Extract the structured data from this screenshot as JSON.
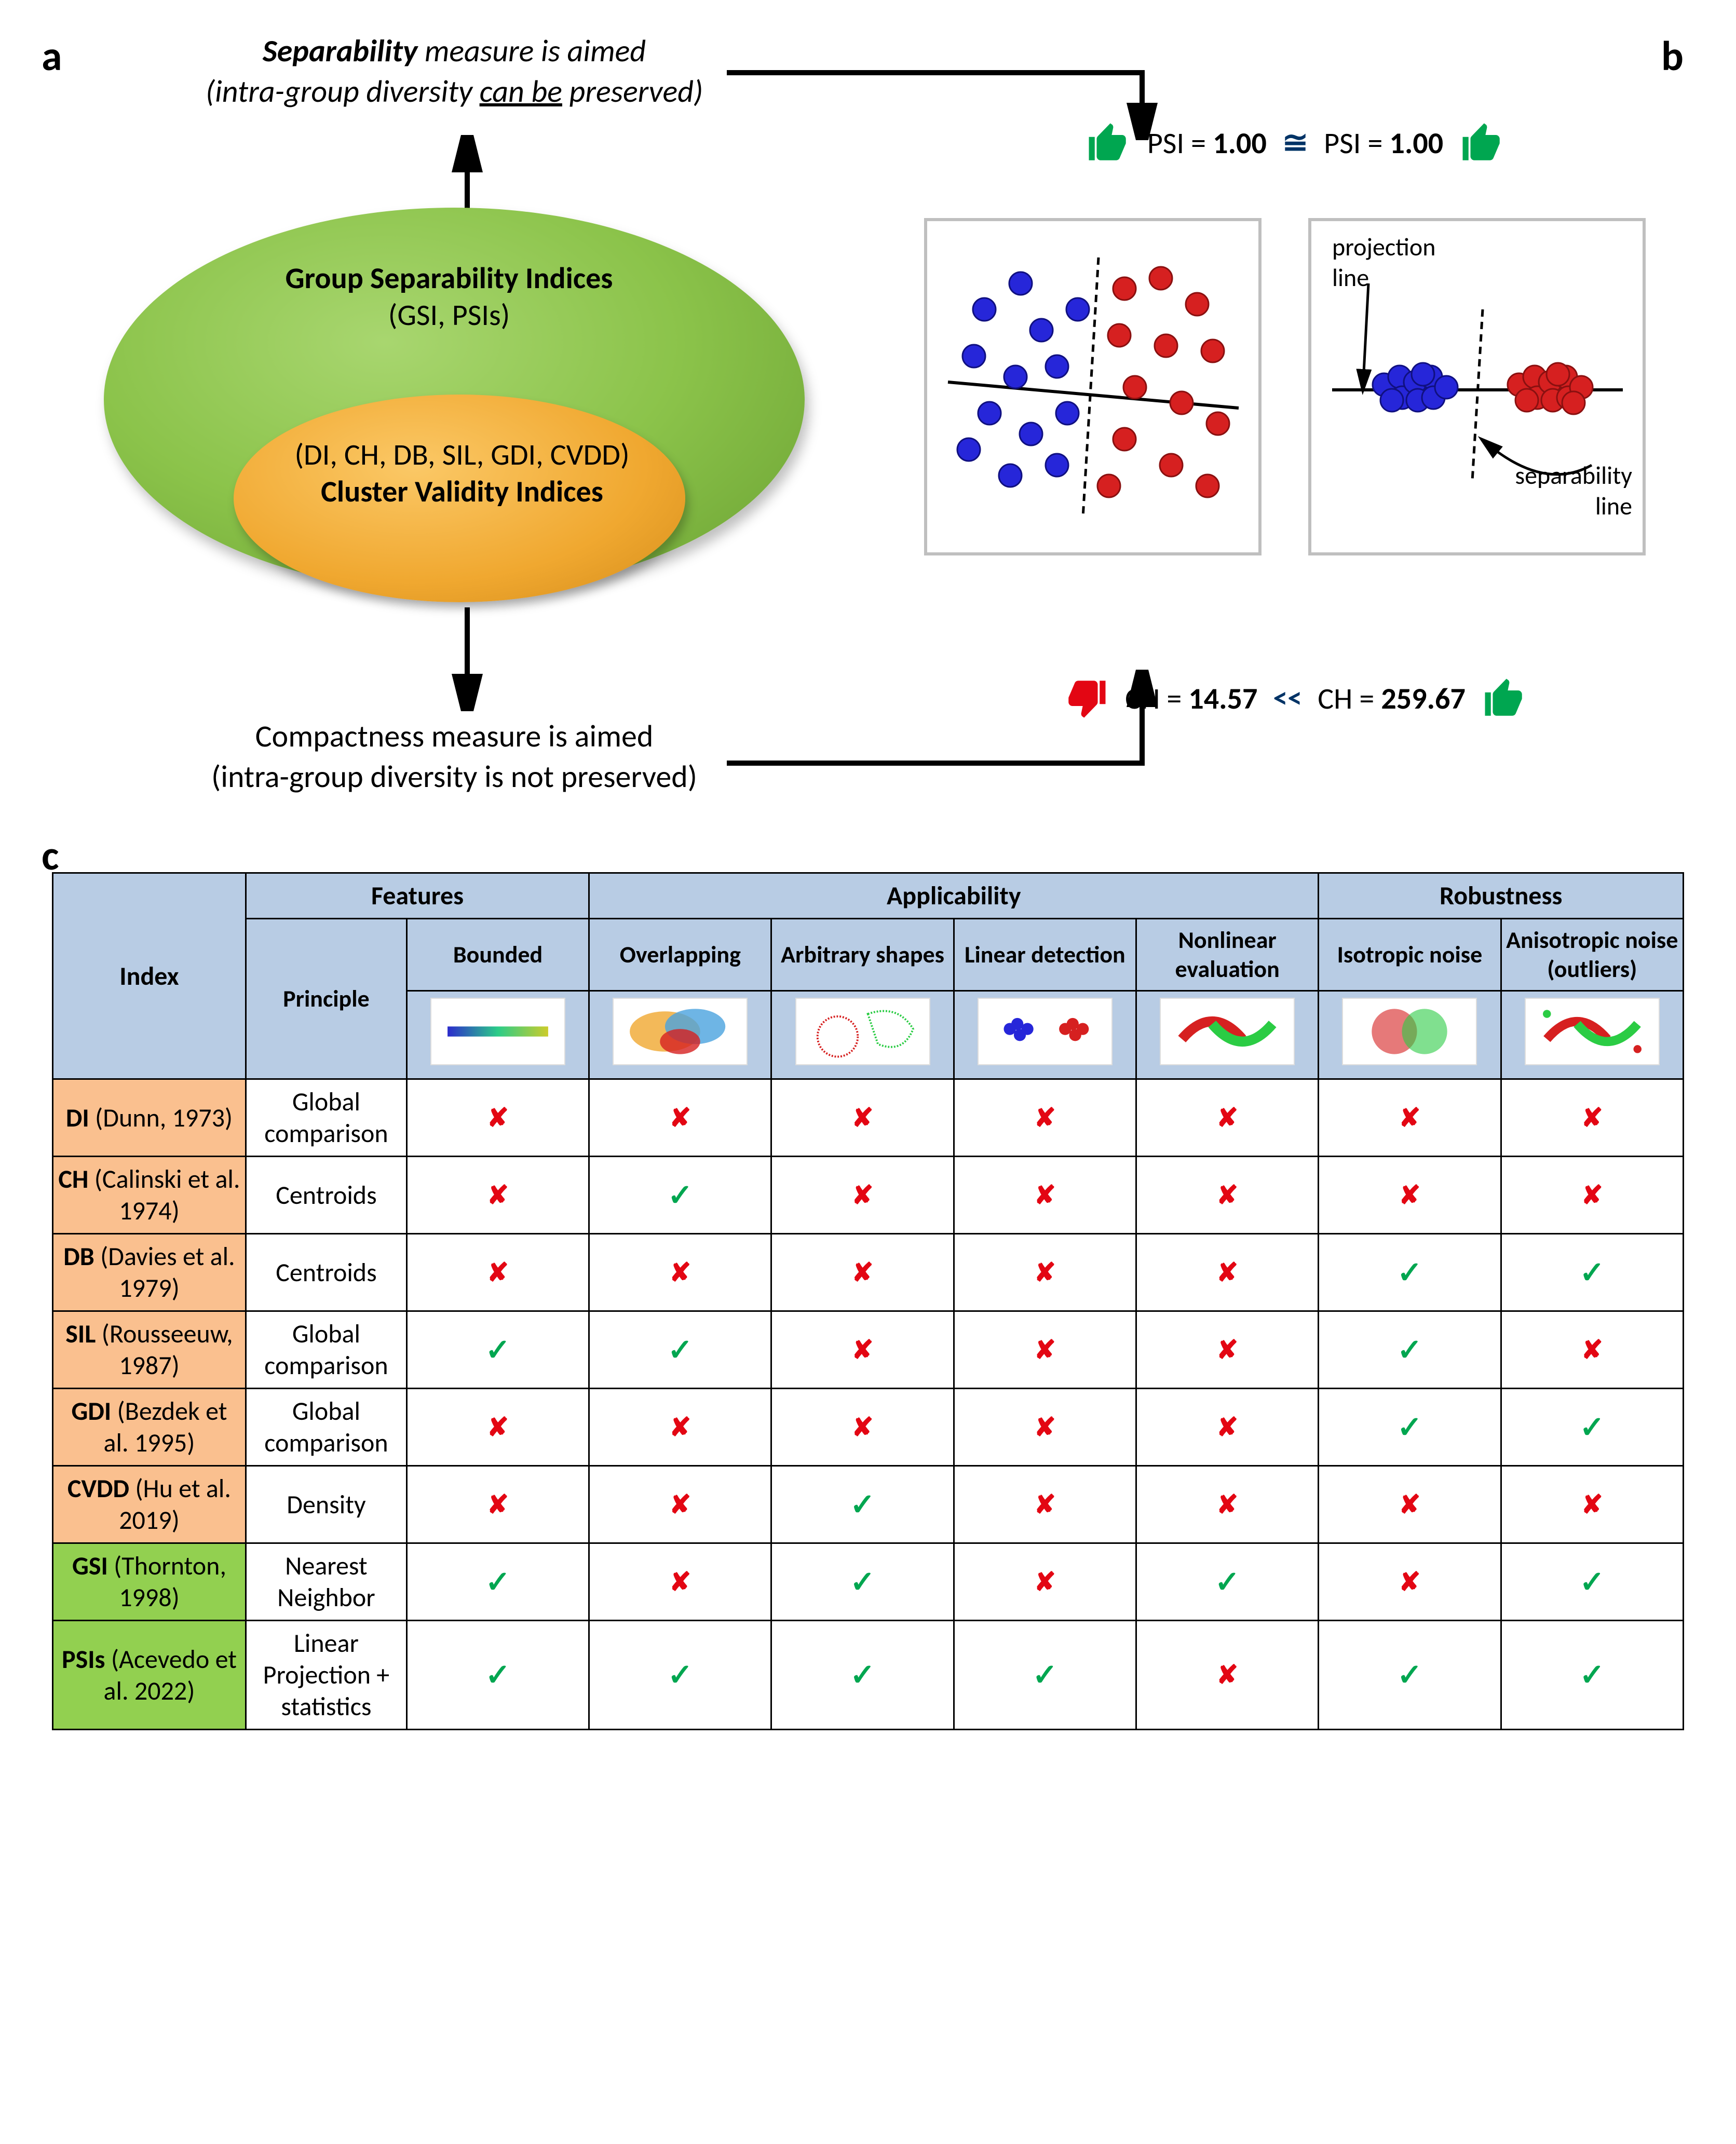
{
  "labels": {
    "a": "a",
    "b": "b",
    "c": "c"
  },
  "panelA": {
    "sep_line1_pre": "Separability",
    "sep_line1_post": " measure is aimed",
    "sep_line2_pre": "(intra-group diversity ",
    "sep_line2_mid": "can be",
    "sep_line2_post": " preserved)",
    "outer_title": "Group Separability Indices",
    "outer_sub": "(GSI, PSIs)",
    "inner_title": "Cluster Validity Indices",
    "inner_sub": "(DI, CH, DB, SIL, GDI, CVDD)",
    "comp_line1_pre": "Compactness",
    "comp_line1_post": " measure is aimed",
    "comp_line2_pre": "(intra-group diversity ",
    "comp_line2_mid": "is not",
    "comp_line2_post": " preserved)"
  },
  "panelB": {
    "psi_label": "PSI = ",
    "psi_left": "1.00",
    "psi_right": "1.00",
    "approx": "≅",
    "ch_label": "CH = ",
    "ch_left": "14.57",
    "ch_right": "259.67",
    "much_less": "<<",
    "proj_label": "projection line",
    "sep_label": "separability line",
    "colors": {
      "blue": "#2626d9",
      "red": "#d62020",
      "thumb_green": "#00a650",
      "thumb_red": "#e30613",
      "box_border": "#bfbfbf"
    }
  },
  "panelC": {
    "headers": {
      "index": "Index",
      "features": "Features",
      "applicability": "Applicability",
      "robustness": "Robustness",
      "principle": "Principle",
      "bounded": "Bounded",
      "overlapping": "Overlapping",
      "arbitrary": "Arbitrary shapes",
      "linear": "Linear detection",
      "nonlinear": "Nonlinear evaluation",
      "isotropic": "Isotropic noise",
      "anisotropic": "Anisotropic noise (outliers)"
    },
    "rows": [
      {
        "group": "orange",
        "name": "DI",
        "cite": " (Dunn, 1973)",
        "principle": "Global comparison",
        "vals": [
          "x",
          "x",
          "x",
          "x",
          "x",
          "x",
          "x"
        ]
      },
      {
        "group": "orange",
        "name": "CH",
        "cite": " (Calinski et al. 1974)",
        "principle": "Centroids",
        "vals": [
          "x",
          "v",
          "x",
          "x",
          "x",
          "x",
          "x"
        ]
      },
      {
        "group": "orange",
        "name": "DB",
        "cite": " (Davies et al. 1979)",
        "principle": "Centroids",
        "vals": [
          "x",
          "x",
          "x",
          "x",
          "x",
          "v",
          "v"
        ]
      },
      {
        "group": "orange",
        "name": "SIL",
        "cite": " (Rousseeuw, 1987)",
        "principle": "Global comparison",
        "vals": [
          "v",
          "v",
          "x",
          "x",
          "x",
          "v",
          "x"
        ]
      },
      {
        "group": "orange",
        "name": "GDI",
        "cite": " (Bezdek et al. 1995)",
        "principle": "Global comparison",
        "vals": [
          "x",
          "x",
          "x",
          "x",
          "x",
          "v",
          "v"
        ]
      },
      {
        "group": "orange",
        "name": "CVDD",
        "cite": " (Hu et al. 2019)",
        "principle": "Density",
        "vals": [
          "x",
          "x",
          "v",
          "x",
          "x",
          "x",
          "x"
        ]
      },
      {
        "group": "green",
        "name": "GSI",
        "cite": " (Thornton, 1998)",
        "principle": "Nearest Neighbor",
        "vals": [
          "v",
          "x",
          "v",
          "x",
          "v",
          "x",
          "v"
        ]
      },
      {
        "group": "green",
        "name": "PSIs",
        "cite": " (Acevedo et al. 2022)",
        "principle": "Linear Projection + statistics",
        "vals": [
          "v",
          "v",
          "v",
          "v",
          "x",
          "v",
          "v"
        ]
      }
    ],
    "colors": {
      "header_bg": "#b8cce4",
      "orange_bg": "#fac08f",
      "green_bg": "#92d050",
      "check": "#00a650",
      "cross": "#e30613"
    }
  }
}
